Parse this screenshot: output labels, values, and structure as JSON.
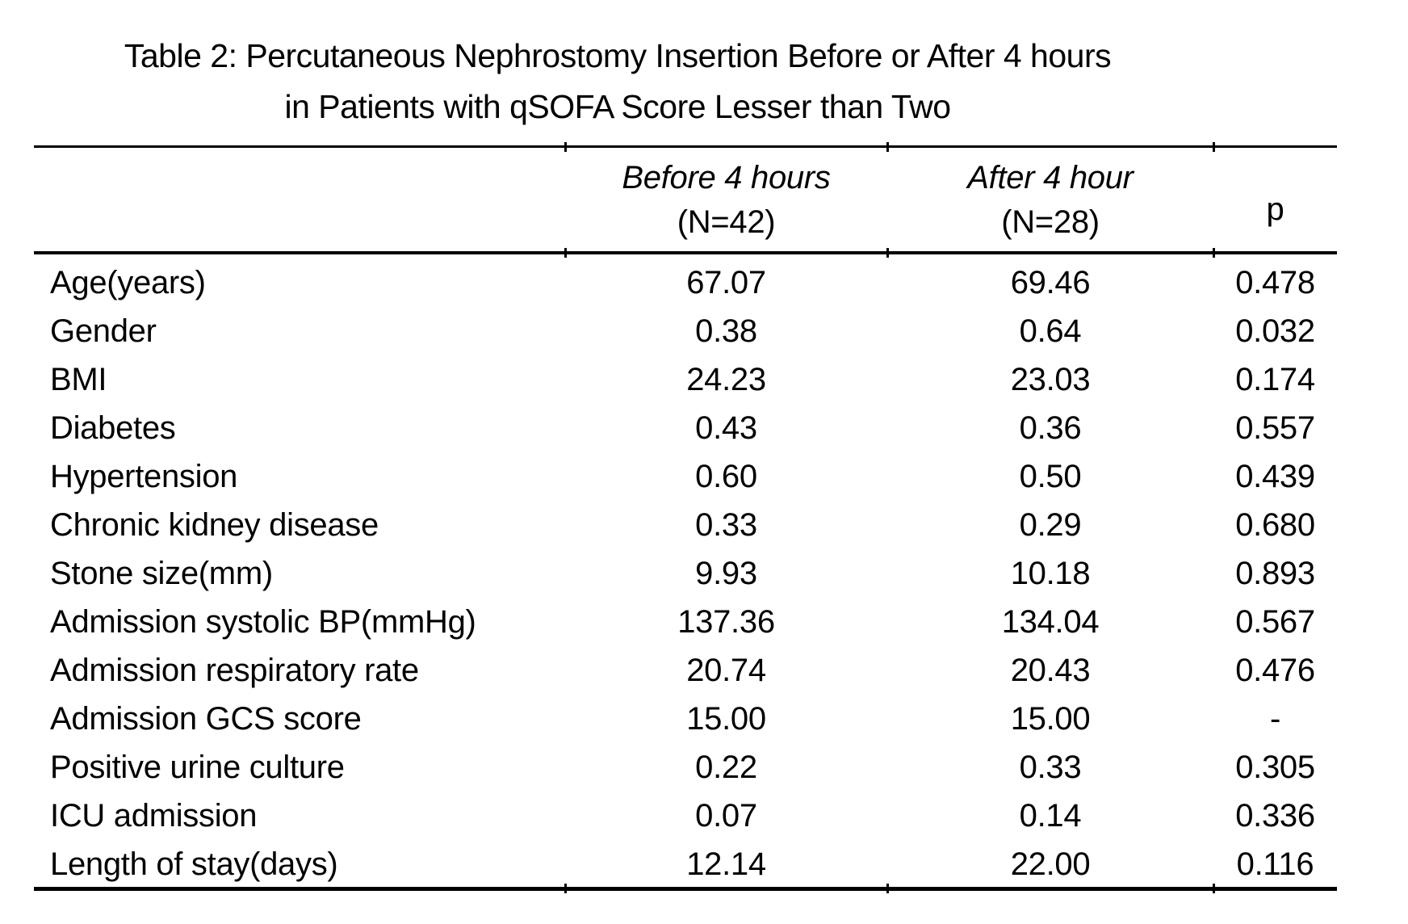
{
  "title": {
    "line1": "Table 2: Percutaneous Nephrostomy Insertion Before or After 4 hours",
    "line2": "in Patients with qSOFA Score Lesser than Two"
  },
  "table": {
    "header": {
      "group_before": {
        "line1": "Before 4 hours",
        "line2": "(N=42)"
      },
      "group_after": {
        "line1": "After 4 hour",
        "line2": "(N=28)"
      },
      "p_label": "p"
    },
    "rows": [
      {
        "label": "Age(years)",
        "before": "67.07",
        "after": "69.46",
        "p": "0.478"
      },
      {
        "label": "Gender",
        "before": "0.38",
        "after": "0.64",
        "p": "0.032"
      },
      {
        "label": "BMI",
        "before": "24.23",
        "after": "23.03",
        "p": "0.174"
      },
      {
        "label": "Diabetes",
        "before": "0.43",
        "after": "0.36",
        "p": "0.557"
      },
      {
        "label": "Hypertension",
        "before": "0.60",
        "after": "0.50",
        "p": "0.439"
      },
      {
        "label": "Chronic kidney disease",
        "before": "0.33",
        "after": "0.29",
        "p": "0.680"
      },
      {
        "label": "Stone size(mm)",
        "before": "9.93",
        "after": "10.18",
        "p": "0.893"
      },
      {
        "label": "Admission systolic BP(mmHg)",
        "before": "137.36",
        "after": "134.04",
        "p": "0.567"
      },
      {
        "label": "Admission respiratory rate",
        "before": "20.74",
        "after": "20.43",
        "p": "0.476"
      },
      {
        "label": "Admission GCS score",
        "before": "15.00",
        "after": "15.00",
        "p": "-"
      },
      {
        "label": "Positive urine culture",
        "before": "0.22",
        "after": "0.33",
        "p": "0.305"
      },
      {
        "label": "ICU admission",
        "before": "0.07",
        "after": "0.14",
        "p": "0.336"
      },
      {
        "label": "Length of stay(days)",
        "before": "12.14",
        "after": "22.00",
        "p": "0.116"
      }
    ]
  },
  "colors": {
    "text": "#000000",
    "background": "#ffffff",
    "rule": "#000000"
  }
}
